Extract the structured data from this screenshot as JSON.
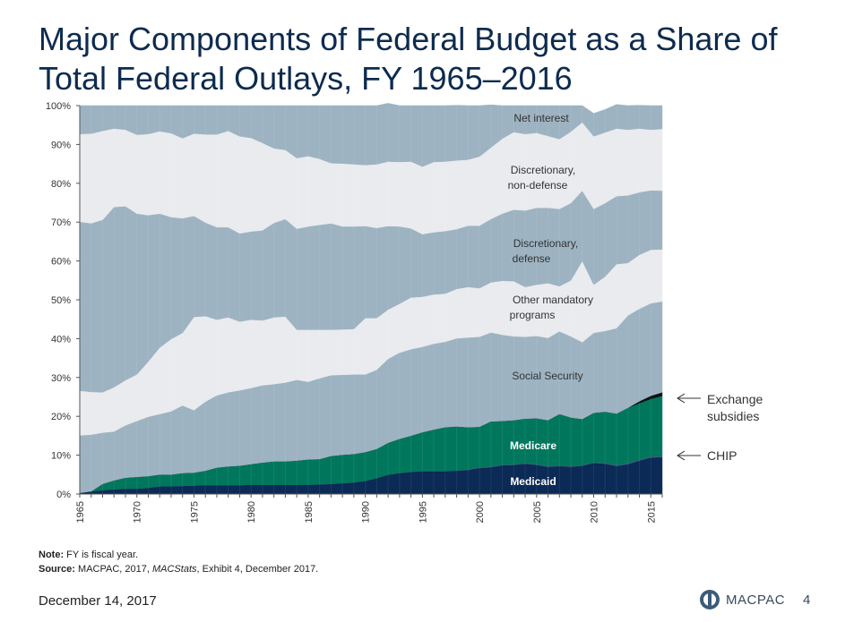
{
  "title": "Major Components of Federal Budget as a Share of Total Federal Outlays, FY 1965–2016",
  "note_label": "Note:",
  "note_text": "FY is fiscal year.",
  "source_label": "Source:",
  "source_pre": "MACPAC, 2017, ",
  "source_italic": "MACStats",
  "source_post": ", Exhibit 4, December 2017.",
  "date": "December 14, 2017",
  "logo_text": "MACPAC",
  "page_number": "4",
  "chart_data": {
    "type": "area",
    "stacked": true,
    "x": [
      1965,
      1966,
      1967,
      1968,
      1969,
      1970,
      1971,
      1972,
      1973,
      1974,
      1975,
      1976,
      1977,
      1978,
      1979,
      1980,
      1981,
      1982,
      1983,
      1984,
      1985,
      1986,
      1987,
      1988,
      1989,
      1990,
      1991,
      1992,
      1993,
      1994,
      1995,
      1996,
      1997,
      1998,
      1999,
      2000,
      2001,
      2002,
      2003,
      2004,
      2005,
      2006,
      2007,
      2008,
      2009,
      2010,
      2011,
      2012,
      2013,
      2014,
      2015,
      2016
    ],
    "x_ticks": [
      "1965",
      "1970",
      "1975",
      "1980",
      "1985",
      "1990",
      "1995",
      "2000",
      "2005",
      "2010",
      "2015"
    ],
    "y_ticks": [
      "0%",
      "10%",
      "20%",
      "30%",
      "40%",
      "50%",
      "60%",
      "70%",
      "80%",
      "90%",
      "100%"
    ],
    "ylim": [
      0,
      100
    ],
    "series": [
      {
        "name": "Medicaid",
        "color": "#0b2a55",
        "label_color": "#ffffff",
        "values": [
          0.3,
          0.7,
          1.0,
          1.2,
          1.4,
          1.4,
          1.6,
          2.0,
          2.0,
          2.1,
          2.2,
          2.3,
          2.3,
          2.3,
          2.3,
          2.4,
          2.4,
          2.4,
          2.4,
          2.4,
          2.4,
          2.5,
          2.6,
          2.8,
          3.0,
          3.4,
          4.1,
          5.0,
          5.4,
          5.7,
          5.9,
          5.9,
          5.9,
          6.0,
          6.2,
          6.7,
          6.9,
          7.4,
          7.5,
          7.8,
          7.5,
          7.0,
          7.2,
          7.0,
          7.3,
          8.0,
          7.8,
          7.2,
          7.7,
          8.6,
          9.4,
          9.5
        ]
      },
      {
        "name": "CHIP",
        "color": "#3d5b78",
        "values": [
          0,
          0,
          0,
          0,
          0,
          0,
          0,
          0,
          0,
          0,
          0,
          0,
          0,
          0,
          0,
          0,
          0,
          0,
          0,
          0,
          0,
          0,
          0,
          0,
          0,
          0,
          0,
          0,
          0,
          0,
          0,
          0,
          0,
          0.1,
          0.2,
          0.2,
          0.2,
          0.2,
          0.2,
          0.2,
          0.2,
          0.2,
          0.2,
          0.2,
          0.2,
          0.2,
          0.3,
          0.3,
          0.3,
          0.3,
          0.3,
          0.3
        ]
      },
      {
        "name": "Medicare",
        "color": "#00775c",
        "label_color": "#ffffff",
        "values": [
          0,
          0,
          1.6,
          2.3,
          2.8,
          3.0,
          3.0,
          3.0,
          3.0,
          3.3,
          3.3,
          3.7,
          4.5,
          4.8,
          5.0,
          5.3,
          5.7,
          6.0,
          6.0,
          6.2,
          6.5,
          6.5,
          7.2,
          7.3,
          7.3,
          7.4,
          7.5,
          8.2,
          8.8,
          9.3,
          10.0,
          10.7,
          11.3,
          11.3,
          10.8,
          10.4,
          11.6,
          11.2,
          11.3,
          11.4,
          11.8,
          11.8,
          13.2,
          12.5,
          11.8,
          12.7,
          13.1,
          13.2,
          14.2,
          14.5,
          14.8,
          15.5
        ]
      },
      {
        "name": "Exchange subsidies",
        "color": "#111111",
        "values": [
          0,
          0,
          0,
          0,
          0,
          0,
          0,
          0,
          0,
          0,
          0,
          0,
          0,
          0,
          0,
          0,
          0,
          0,
          0,
          0,
          0,
          0,
          0,
          0,
          0,
          0,
          0,
          0,
          0,
          0,
          0,
          0,
          0,
          0,
          0,
          0,
          0,
          0,
          0,
          0,
          0,
          0,
          0,
          0,
          0,
          0,
          0,
          0,
          0,
          0.5,
          0.8,
          0.9
        ]
      },
      {
        "name": "Social Security",
        "color": "#9db3c2",
        "label_color": "#333333",
        "values": [
          14.8,
          14.6,
          13.2,
          12.6,
          13.5,
          14.4,
          15.3,
          15.6,
          16.3,
          17.4,
          16.1,
          17.8,
          18.6,
          19.1,
          19.4,
          19.6,
          19.9,
          19.9,
          20.3,
          20.8,
          20.0,
          20.8,
          20.8,
          20.6,
          20.5,
          20.0,
          20.4,
          21.6,
          22.2,
          22.3,
          22.0,
          22.1,
          22.0,
          22.7,
          23.1,
          23.2,
          22.9,
          22.2,
          21.6,
          21.1,
          21.2,
          21.2,
          21.3,
          20.9,
          19.8,
          20.6,
          20.8,
          22.0,
          23.8,
          23.8,
          23.8,
          23.4
        ]
      },
      {
        "name": "Other mandatory programs",
        "color": "#e9ebee",
        "label_color": "#333333",
        "values": [
          11.5,
          11.0,
          10.4,
          11.4,
          11.6,
          12.0,
          14.2,
          17.1,
          18.6,
          18.7,
          24.0,
          22.0,
          19.5,
          19.3,
          17.7,
          17.6,
          16.7,
          17.2,
          17.0,
          12.9,
          13.4,
          12.5,
          11.7,
          11.7,
          11.7,
          14.5,
          13.3,
          12.7,
          12.6,
          13.3,
          12.9,
          12.7,
          12.4,
          12.7,
          13.0,
          12.5,
          12.9,
          13.9,
          14.2,
          12.8,
          13.2,
          14.1,
          11.6,
          14.4,
          20.9,
          12.4,
          14.0,
          16.5,
          13.5,
          13.9,
          13.8,
          13.4
        ]
      },
      {
        "name": "Discretionary, defense",
        "color": "#9db3c2",
        "label_color": "#333333",
        "values": [
          43.5,
          43.4,
          44.4,
          46.4,
          44.8,
          41.4,
          37.7,
          34.5,
          31.4,
          29.5,
          26.0,
          24.1,
          23.8,
          23.2,
          22.7,
          22.7,
          23.2,
          24.3,
          25.1,
          26.0,
          26.6,
          27.0,
          27.4,
          26.5,
          26.4,
          23.7,
          23.2,
          21.5,
          19.9,
          17.8,
          16.1,
          16.0,
          16.1,
          15.4,
          15.8,
          16.1,
          16.3,
          17.3,
          18.4,
          19.7,
          19.8,
          19.4,
          19.9,
          19.9,
          18.1,
          19.5,
          18.9,
          17.5,
          17.4,
          16.1,
          15.3,
          15.1
        ]
      },
      {
        "name": "Discretionary, non-defense",
        "color": "#e9ebee",
        "label_color": "#333333",
        "values": [
          22.6,
          23.1,
          22.9,
          20.2,
          19.7,
          20.3,
          20.9,
          21.2,
          21.6,
          20.6,
          21.2,
          22.7,
          23.9,
          24.8,
          25.0,
          24.1,
          22.5,
          19.2,
          17.8,
          18.2,
          18.1,
          17.0,
          15.5,
          16.2,
          16.0,
          15.7,
          16.4,
          16.6,
          16.6,
          17.2,
          17.4,
          18.1,
          17.9,
          17.7,
          17.0,
          17.8,
          18.4,
          19.3,
          20.0,
          19.7,
          19.3,
          18.5,
          18.0,
          18.4,
          17.6,
          18.7,
          18.2,
          17.4,
          16.9,
          16.4,
          15.6,
          15.9
        ]
      },
      {
        "name": "Net interest",
        "color": "#9db3c2",
        "label_color": "#333333",
        "values": [
          7.3,
          7.2,
          6.5,
          5.9,
          6.2,
          7.5,
          7.3,
          6.6,
          7.1,
          8.4,
          7.2,
          7.4,
          7.4,
          6.5,
          7.9,
          8.3,
          9.6,
          11.0,
          11.4,
          13.5,
          13.0,
          13.7,
          14.8,
          14.9,
          15.1,
          15.3,
          15.1,
          15.0,
          14.5,
          14.4,
          15.7,
          14.5,
          14.4,
          14.2,
          13.9,
          13.1,
          11.0,
          8.5,
          6.8,
          7.3,
          7.0,
          7.8,
          8.6,
          6.7,
          4.3,
          5.9,
          5.9,
          6.2,
          6.2,
          6.0,
          6.2,
          6.0
        ]
      }
    ],
    "inside_labels": [
      "Net interest",
      "Discretionary,",
      "non-defense",
      "Discretionary,",
      "defense",
      "Other mandatory",
      "programs",
      "Social Security",
      "Medicare",
      "Medicaid"
    ],
    "callouts": {
      "exchange_line1": "Exchange",
      "exchange_line2": "subsidies",
      "chip": "CHIP"
    }
  }
}
